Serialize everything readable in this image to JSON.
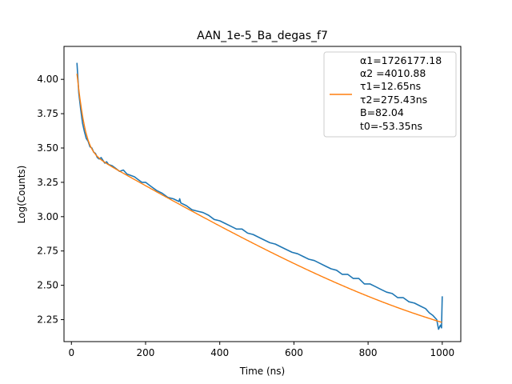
{
  "chart_data": {
    "type": "line",
    "title": "AAN_1e-5_Ba_degas_f7",
    "xlabel": "Time (ns)",
    "ylabel": "Log(Counts)",
    "xlim": [
      -20,
      1050
    ],
    "ylim": [
      2.09,
      4.24
    ],
    "x_ticks": [
      0,
      200,
      400,
      600,
      800,
      1000
    ],
    "y_ticks": [
      2.25,
      2.5,
      2.75,
      3.0,
      3.25,
      3.5,
      3.75,
      4.0
    ],
    "x_tick_labels": [
      "0",
      "200",
      "400",
      "600",
      "800",
      "1000"
    ],
    "y_tick_labels": [
      "2.25",
      "2.50",
      "2.75",
      "3.00",
      "3.25",
      "3.50",
      "3.75",
      "4.00"
    ],
    "grid": false,
    "legend_position": "top-right",
    "legend_lines": [
      "α1=1726177.18",
      "α2 =4010.88",
      "τ1=12.65ns",
      "τ2=275.43ns",
      "B=82.04",
      "t0=-53.35ns"
    ],
    "series": [
      {
        "color": "#1f77b4",
        "x": [
          15,
          20,
          25,
          30,
          35,
          40,
          45,
          50,
          55,
          60,
          65,
          70,
          75,
          80,
          85,
          90,
          95,
          100,
          110,
          120,
          130,
          140,
          150,
          160,
          170,
          180,
          190,
          200,
          215,
          230,
          245,
          260,
          275,
          290,
          292,
          295,
          310,
          325,
          340,
          355,
          370,
          385,
          400,
          415,
          430,
          445,
          460,
          475,
          490,
          505,
          520,
          535,
          550,
          565,
          580,
          595,
          610,
          625,
          640,
          655,
          670,
          685,
          700,
          715,
          730,
          745,
          760,
          775,
          790,
          805,
          820,
          835,
          850,
          865,
          880,
          895,
          910,
          925,
          940,
          955,
          965,
          975,
          985,
          990,
          995,
          998,
          1000
        ],
        "y": [
          4.12,
          3.9,
          3.78,
          3.68,
          3.62,
          3.57,
          3.55,
          3.51,
          3.5,
          3.47,
          3.46,
          3.43,
          3.42,
          3.43,
          3.41,
          3.39,
          3.4,
          3.38,
          3.37,
          3.35,
          3.33,
          3.34,
          3.31,
          3.3,
          3.29,
          3.27,
          3.25,
          3.25,
          3.22,
          3.19,
          3.17,
          3.14,
          3.13,
          3.11,
          3.13,
          3.1,
          3.08,
          3.05,
          3.04,
          3.03,
          3.01,
          2.98,
          2.97,
          2.95,
          2.93,
          2.91,
          2.91,
          2.88,
          2.87,
          2.85,
          2.83,
          2.81,
          2.8,
          2.78,
          2.76,
          2.74,
          2.73,
          2.71,
          2.69,
          2.68,
          2.66,
          2.64,
          2.62,
          2.61,
          2.58,
          2.58,
          2.55,
          2.55,
          2.51,
          2.51,
          2.49,
          2.47,
          2.45,
          2.44,
          2.41,
          2.41,
          2.38,
          2.37,
          2.35,
          2.33,
          2.3,
          2.28,
          2.25,
          2.18,
          2.21,
          2.19,
          2.42
        ]
      },
      {
        "color": "#ff7f0e",
        "fit": {
          "a1": 1726177.18,
          "a2": 4010.88,
          "tau1": 12.65,
          "tau2": 275.43,
          "B": 82.04,
          "t0": -53.35
        }
      }
    ]
  }
}
